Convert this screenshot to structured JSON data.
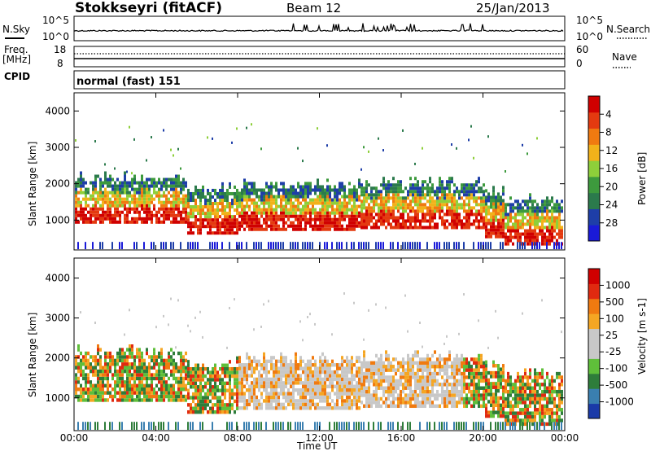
{
  "header": {
    "station": "Stokkseyri (fitACF)",
    "beam": "Beam 12",
    "date": "25/Jan/2013"
  },
  "status_panel": {
    "left_label_1": "N.Sky",
    "left_label_2": "Freq.",
    "left_label_3": "[MHz]",
    "left_label_4": "CPID",
    "right_label_1": "N.Search",
    "right_label_2": "Nave",
    "noise_ticks_left": [
      "10^5",
      "10^0"
    ],
    "noise_ticks_right": [
      "10^5",
      "10^0"
    ],
    "freq_ticks": [
      "18",
      "8"
    ],
    "nave_ticks": [
      "60",
      "0"
    ],
    "cpid_text": "normal (fast) 151"
  },
  "chart_data": [
    {
      "type": "heatmap",
      "title": "",
      "xlabel": "",
      "ylabel": "Slant Range [km]",
      "xlim": [
        0,
        24
      ],
      "ylim": [
        180,
        4500
      ],
      "y_ticks": [
        "1000",
        "2000",
        "3000",
        "4000"
      ],
      "colorbar": {
        "label": "Power [dB]",
        "ticks": [
          "4",
          "8",
          "12",
          "16",
          "20",
          "24",
          "28"
        ],
        "colors": [
          "#1a1ad8",
          "#1e3ea8",
          "#2b7a4c",
          "#3d9a3d",
          "#8ecf3a",
          "#f2b21a",
          "#f07a10",
          "#e43a10",
          "#d00000"
        ]
      }
    },
    {
      "type": "heatmap",
      "title": "",
      "xlabel": "Time UT",
      "ylabel": "Slant Range [km]",
      "xlim": [
        0,
        24
      ],
      "ylim": [
        180,
        4500
      ],
      "y_ticks": [
        "1000",
        "2000",
        "3000",
        "4000"
      ],
      "x_ticks": [
        "00:00",
        "04:00",
        "08:00",
        "12:00",
        "16:00",
        "20:00",
        "00:00"
      ],
      "colorbar": {
        "label": "Velocity [m s-1]",
        "ticks": [
          "1000",
          "500",
          "100",
          "25",
          "-25",
          "-100",
          "-500",
          "-1000"
        ],
        "colors": [
          "#1a3aa8",
          "#3a7fb0",
          "#2e7d3a",
          "#5fbf3a",
          "#c8c8c8",
          "#c8c8c8",
          "#f5a623",
          "#f07a10",
          "#e02a10",
          "#d00000"
        ]
      }
    }
  ]
}
